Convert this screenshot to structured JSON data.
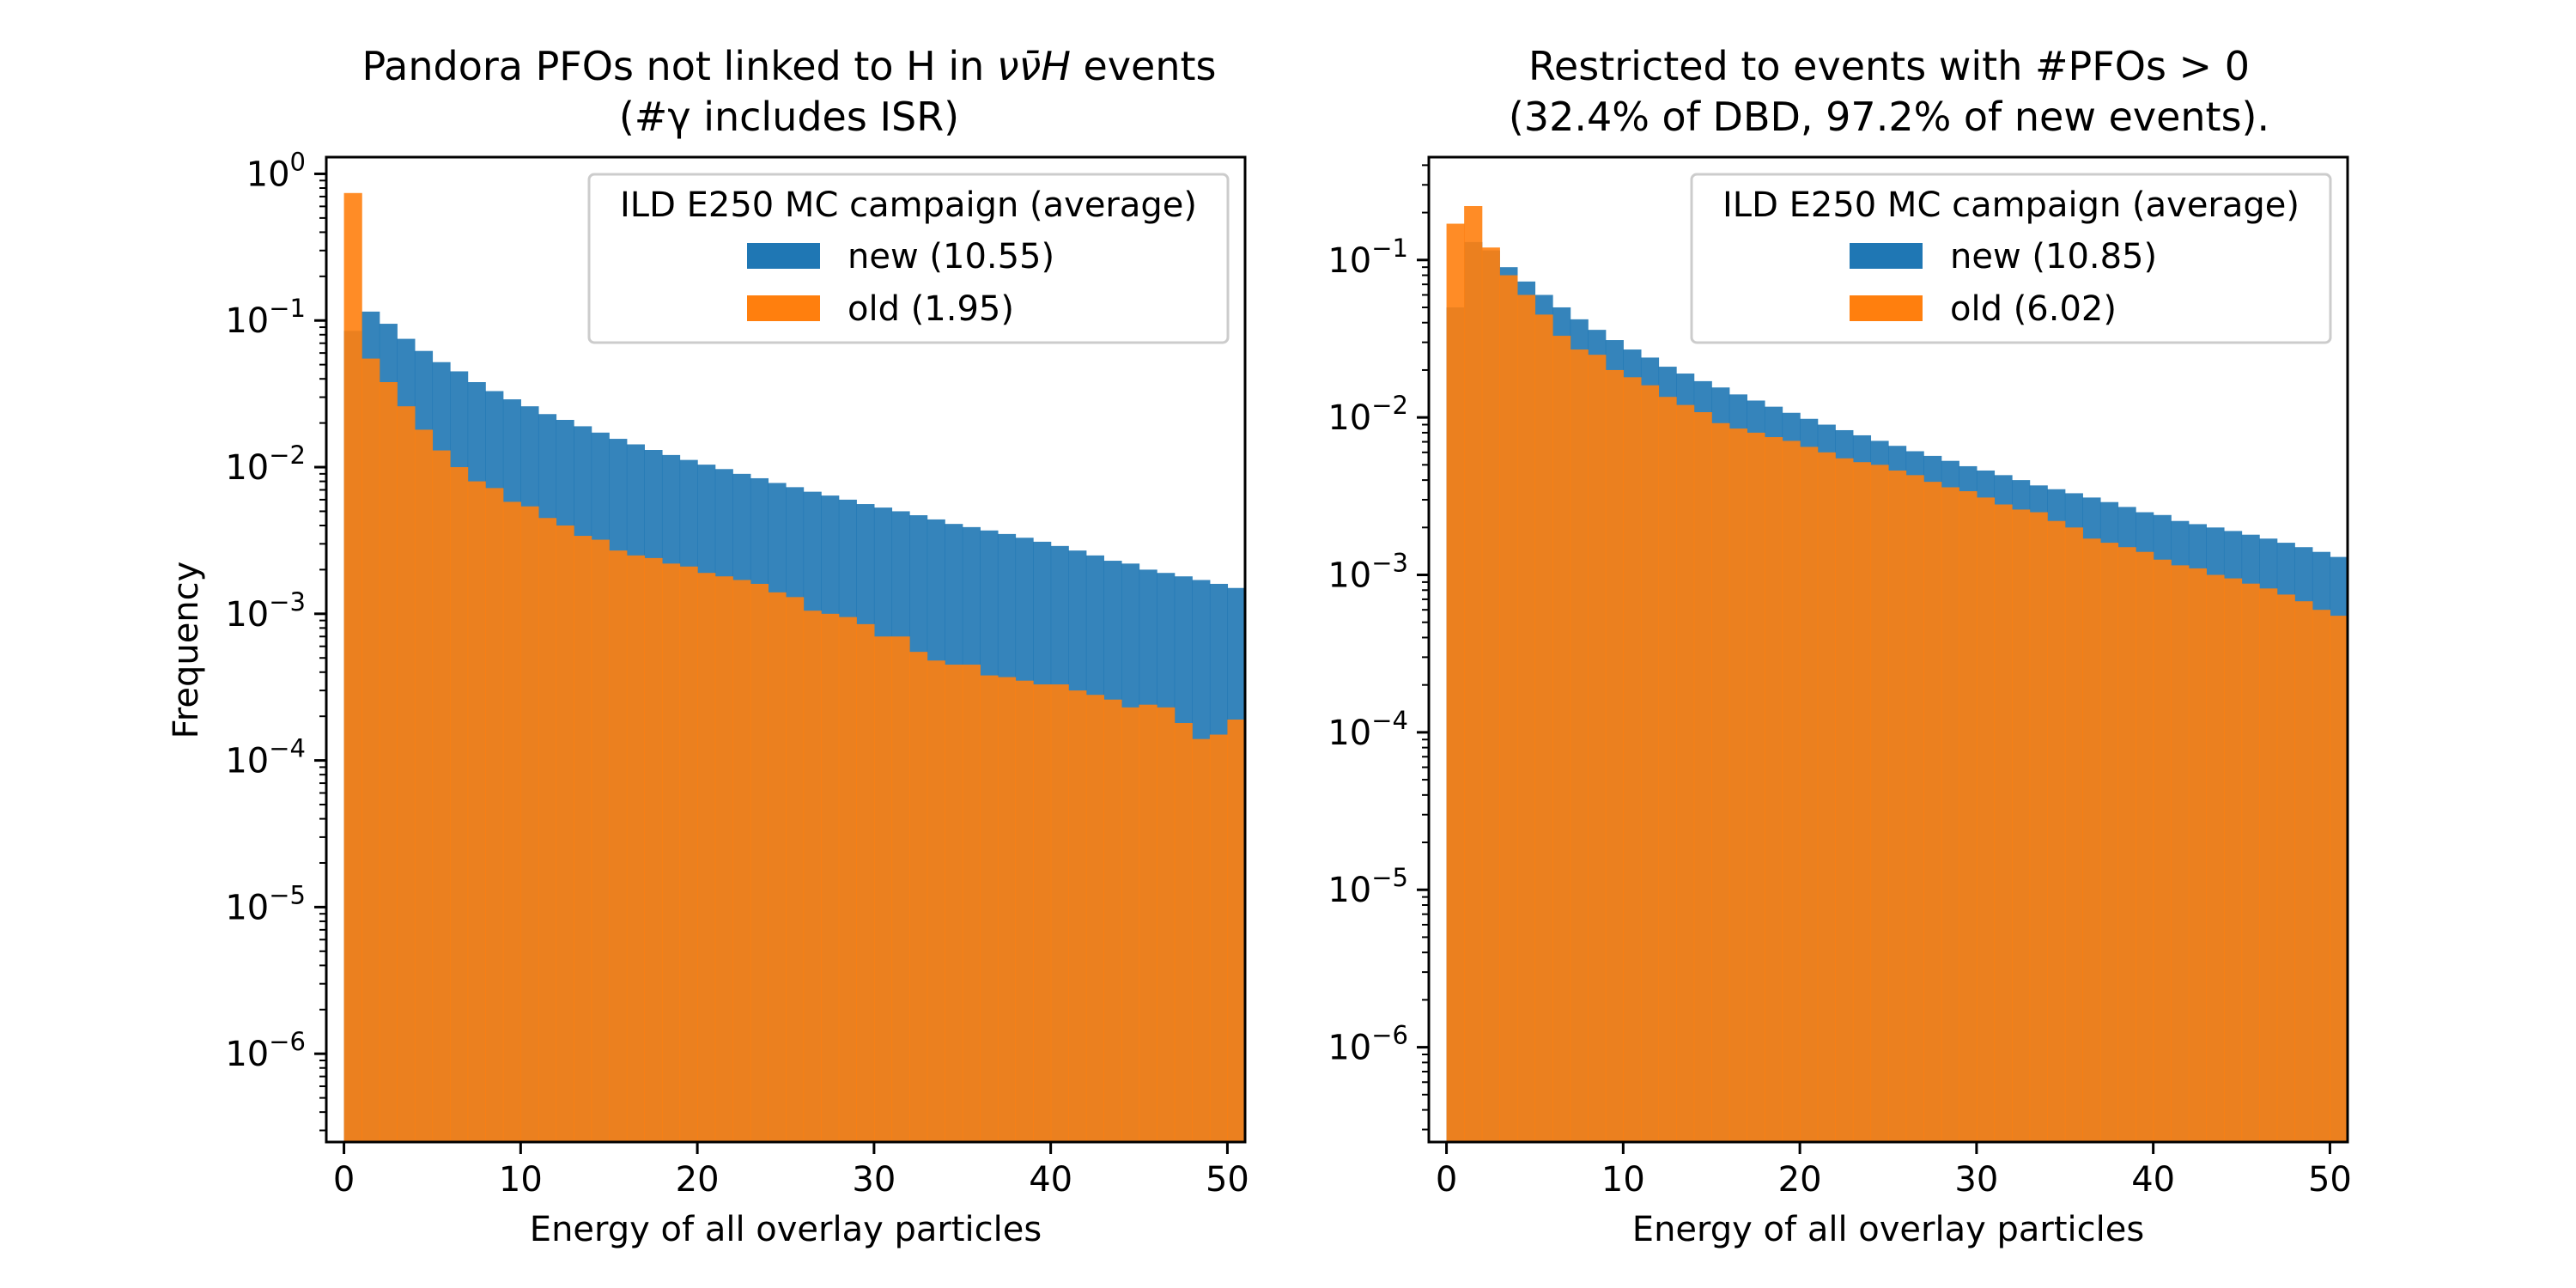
{
  "chart_data": [
    {
      "type": "histogram",
      "title_line1_prefix": "Pandora PFOs not linked to H in ",
      "title_line1_math": "νν̄H",
      "title_line1_suffix": " events",
      "title_line2": "(#γ includes ISR)",
      "xlabel": "Energy of all overlay particles",
      "ylabel": "Frequency",
      "xlim": [
        -1,
        51
      ],
      "ylim": [
        2.5e-07,
        1.3
      ],
      "yscale": "log",
      "x_ticks": [
        "0",
        "10",
        "20",
        "30",
        "40",
        "50"
      ],
      "y_ticks": [
        {
          "base": "10",
          "exp": "0"
        },
        {
          "base": "10",
          "exp": "−1"
        },
        {
          "base": "10",
          "exp": "−2"
        },
        {
          "base": "10",
          "exp": "−3"
        },
        {
          "base": "10",
          "exp": "−4"
        },
        {
          "base": "10",
          "exp": "−5"
        },
        {
          "base": "10",
          "exp": "−6"
        }
      ],
      "legend": {
        "title": "ILD E250 MC campaign (average)",
        "placement": "top-right"
      },
      "bin_width": 1,
      "series": [
        {
          "name": "new (10.55)",
          "color": "#1f77b4",
          "values": [
            0.085,
            0.115,
            0.095,
            0.075,
            0.062,
            0.052,
            0.045,
            0.038,
            0.033,
            0.029,
            0.026,
            0.023,
            0.021,
            0.019,
            0.0172,
            0.0156,
            0.0143,
            0.0131,
            0.0121,
            0.0112,
            0.0104,
            0.0097,
            0.009,
            0.0084,
            0.0078,
            0.0073,
            0.0068,
            0.0064,
            0.006,
            0.0056,
            0.0053,
            0.005,
            0.0047,
            0.0044,
            0.0041,
            0.0039,
            0.0037,
            0.0035,
            0.0033,
            0.0031,
            0.0029,
            0.0027,
            0.0025,
            0.0023,
            0.0022,
            0.002,
            0.0019,
            0.0018,
            0.0017,
            0.0016,
            0.0015,
            0.0014
          ]
        },
        {
          "name": "old (1.95)",
          "color": "#ff7f0e",
          "values": [
            0.74,
            0.055,
            0.038,
            0.026,
            0.018,
            0.013,
            0.01,
            0.008,
            0.0072,
            0.0058,
            0.0054,
            0.0045,
            0.004,
            0.0034,
            0.0032,
            0.0027,
            0.0025,
            0.0024,
            0.0022,
            0.0021,
            0.0019,
            0.0018,
            0.0017,
            0.0016,
            0.0014,
            0.0013,
            0.00105,
            0.001,
            0.00095,
            0.00085,
            0.0007,
            0.0007,
            0.00055,
            0.00048,
            0.00045,
            0.00045,
            0.00038,
            0.00037,
            0.00035,
            0.00033,
            0.00033,
            0.0003,
            0.00028,
            0.00026,
            0.00023,
            0.00024,
            0.00023,
            0.00018,
            0.00014,
            0.00015,
            0.00019
          ]
        }
      ]
    },
    {
      "type": "histogram",
      "title_line1": "Restricted to events with #PFOs > 0",
      "title_line2": "(32.4% of DBD, 97.2% of new events).",
      "xlabel": "Energy of all overlay particles",
      "ylabel": "",
      "xlim": [
        -1,
        51
      ],
      "ylim": [
        2.5e-07,
        0.45
      ],
      "yscale": "log",
      "x_ticks": [
        "0",
        "10",
        "20",
        "30",
        "40",
        "50"
      ],
      "y_ticks": [
        {
          "base": "10",
          "exp": "−1"
        },
        {
          "base": "10",
          "exp": "−2"
        },
        {
          "base": "10",
          "exp": "−3"
        },
        {
          "base": "10",
          "exp": "−4"
        },
        {
          "base": "10",
          "exp": "−5"
        },
        {
          "base": "10",
          "exp": "−6"
        }
      ],
      "legend": {
        "title": "ILD E250 MC campaign (average)",
        "placement": "top-right"
      },
      "bin_width": 1,
      "series": [
        {
          "name": "new (10.85)",
          "color": "#1f77b4",
          "values": [
            0.05,
            0.13,
            0.115,
            0.09,
            0.073,
            0.06,
            0.05,
            0.042,
            0.036,
            0.031,
            0.027,
            0.024,
            0.021,
            0.019,
            0.017,
            0.0155,
            0.014,
            0.0128,
            0.0117,
            0.0107,
            0.0098,
            0.009,
            0.0083,
            0.0077,
            0.0071,
            0.0066,
            0.0061,
            0.0057,
            0.0053,
            0.0049,
            0.0046,
            0.0043,
            0.004,
            0.0037,
            0.0035,
            0.0033,
            0.0031,
            0.0029,
            0.0027,
            0.0025,
            0.0024,
            0.0022,
            0.0021,
            0.002,
            0.0019,
            0.0018,
            0.0017,
            0.0016,
            0.0015,
            0.0014,
            0.0013,
            0.0012
          ]
        },
        {
          "name": "old (6.02)",
          "color": "#ff7f0e",
          "values": [
            0.17,
            0.22,
            0.12,
            0.08,
            0.06,
            0.045,
            0.033,
            0.027,
            0.025,
            0.02,
            0.018,
            0.016,
            0.0135,
            0.012,
            0.0108,
            0.0092,
            0.0085,
            0.008,
            0.0075,
            0.0071,
            0.0065,
            0.006,
            0.0055,
            0.0052,
            0.005,
            0.0046,
            0.0043,
            0.0039,
            0.0036,
            0.0034,
            0.0031,
            0.0028,
            0.0026,
            0.0025,
            0.0022,
            0.002,
            0.0017,
            0.0016,
            0.0015,
            0.0014,
            0.00125,
            0.00115,
            0.0011,
            0.001,
            0.00095,
            0.00088,
            0.00082,
            0.00075,
            0.00068,
            0.0006,
            0.00055
          ]
        }
      ]
    }
  ]
}
